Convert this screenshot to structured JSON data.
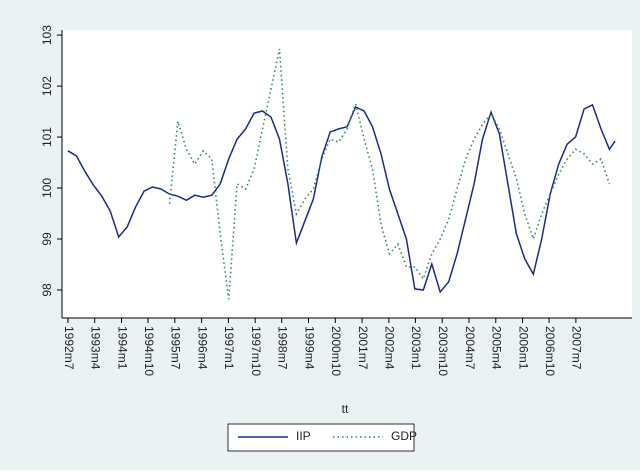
{
  "chart_data": {
    "type": "line",
    "x": [
      0,
      3,
      6,
      9,
      12,
      15,
      18,
      21,
      24,
      27,
      30,
      33,
      36,
      39,
      42,
      45,
      48,
      51,
      54,
      57,
      60,
      63,
      66,
      69,
      72,
      75,
      78,
      81,
      84,
      87,
      90,
      93,
      96,
      99,
      102,
      105,
      108,
      111,
      114,
      117,
      120,
      123,
      126,
      129,
      132,
      135,
      138,
      141,
      144,
      147,
      150,
      153,
      156,
      159,
      162,
      165,
      168,
      171,
      174,
      177,
      180,
      183,
      186,
      189,
      192,
      194
    ],
    "series": [
      {
        "name": "IIP",
        "color": "#1a2b8c",
        "style": "solid",
        "values": [
          100.73,
          100.63,
          100.33,
          100.06,
          99.84,
          99.55,
          99.04,
          99.24,
          99.63,
          99.94,
          100.02,
          99.98,
          99.88,
          99.84,
          99.76,
          99.86,
          99.82,
          99.86,
          100.08,
          100.57,
          100.96,
          101.16,
          101.47,
          101.51,
          101.39,
          100.96,
          100.08,
          98.92,
          99.35,
          99.78,
          100.61,
          101.1,
          101.16,
          101.2,
          101.59,
          101.51,
          101.2,
          100.67,
          99.98,
          99.49,
          99.0,
          98.02,
          98.0,
          98.51,
          97.96,
          98.16,
          98.71,
          99.39,
          100.08,
          100.96,
          101.49,
          101.06,
          100.08,
          99.1,
          98.61,
          98.31,
          99.0,
          99.88,
          100.47,
          100.86,
          101.0,
          101.55,
          101.63,
          101.16,
          100.76,
          100.92
        ]
      },
      {
        "name": "GDP",
        "color": "#2e8b57",
        "style": "dotted",
        "values": [
          null,
          null,
          null,
          null,
          null,
          null,
          null,
          null,
          null,
          null,
          null,
          null,
          99.69,
          101.31,
          100.76,
          100.47,
          100.73,
          100.57,
          99.1,
          97.82,
          100.08,
          99.98,
          100.37,
          101.16,
          101.94,
          102.73,
          100.37,
          99.49,
          99.78,
          99.98,
          100.57,
          100.96,
          100.9,
          101.16,
          101.65,
          100.96,
          100.37,
          99.29,
          98.71,
          98.9,
          98.45,
          98.45,
          98.22,
          98.71,
          99.0,
          99.39,
          99.98,
          100.57,
          100.96,
          101.25,
          101.45,
          101.16,
          100.67,
          100.18,
          99.49,
          99.0,
          99.49,
          99.88,
          100.27,
          100.57,
          100.76,
          100.67,
          100.47,
          100.57,
          100.08,
          null
        ]
      }
    ],
    "x_label": "tt",
    "xlim": [
      -2.1,
      200
    ],
    "xticks": [
      {
        "value": 0,
        "label": "1992m7"
      },
      {
        "value": 9.5,
        "label": "1993m4"
      },
      {
        "value": 19,
        "label": "1994m1"
      },
      {
        "value": 28.4,
        "label": "1994m10"
      },
      {
        "value": 37.9,
        "label": "1995m7"
      },
      {
        "value": 47.4,
        "label": "1996m4"
      },
      {
        "value": 56.9,
        "label": "1997m1"
      },
      {
        "value": 66.4,
        "label": "1997m10"
      },
      {
        "value": 75.8,
        "label": "1998m7"
      },
      {
        "value": 85.3,
        "label": "1999m4"
      },
      {
        "value": 94.8,
        "label": "2000m10"
      },
      {
        "value": 104.3,
        "label": "2001m7"
      },
      {
        "value": 113.8,
        "label": "2002m4"
      },
      {
        "value": 123.2,
        "label": "2003m1"
      },
      {
        "value": 132.7,
        "label": "2003m10"
      },
      {
        "value": 142.2,
        "label": "2004m7"
      },
      {
        "value": 151.7,
        "label": "2005m4"
      },
      {
        "value": 161.2,
        "label": "2006m1"
      },
      {
        "value": 170.6,
        "label": "2006m10"
      },
      {
        "value": 180.1,
        "label": "2007m7"
      }
    ],
    "ylim": [
      97.45,
      103.1
    ],
    "yticks": [
      98,
      99,
      100,
      101,
      102,
      103
    ],
    "grid": false,
    "legend": "bottom"
  }
}
